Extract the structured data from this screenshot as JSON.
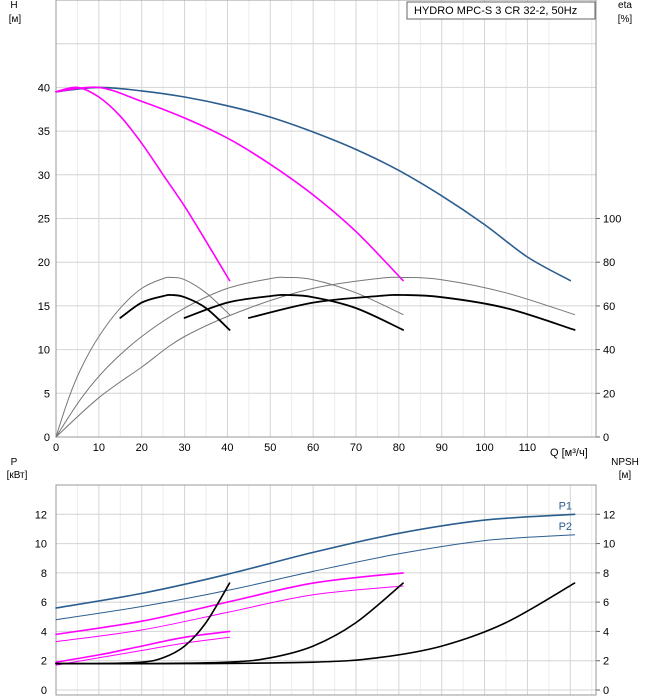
{
  "chart_data": [
    {
      "type": "line",
      "title": "HYDRO MPC-S 3 CR 32-2, 50Hz",
      "xlabel": "Q [м³/ч]",
      "ylabel": "H",
      "ylabel_unit": "[м]",
      "y2label": "eta",
      "y2label_unit": "[%]",
      "xlim": [
        0,
        126
      ],
      "ylim": [
        0,
        50
      ],
      "y2lim": [
        0,
        200
      ],
      "x_ticks": [
        0,
        10,
        20,
        30,
        40,
        50,
        60,
        70,
        80,
        90,
        100,
        110
      ],
      "y_ticks": [
        0,
        5,
        10,
        15,
        20,
        25,
        30,
        35,
        40
      ],
      "y2_ticks": [
        0,
        20,
        40,
        60,
        80,
        100
      ],
      "grid": true,
      "colors": {
        "head_all": "#2b5d8f",
        "head_partial": "#ff00ff",
        "eta": "#000000"
      },
      "series": [
        {
          "values_x": [
            0,
            10,
            20,
            30,
            40,
            50,
            60,
            70,
            80,
            90,
            100,
            110,
            120
          ],
          "values_y": [
            39.5,
            40.0,
            39.6,
            38.9,
            37.9,
            36.6,
            34.9,
            32.9,
            30.5,
            27.6,
            24.3,
            20.6,
            17.9
          ]
        },
        {
          "values_x": [
            0,
            10,
            20,
            30,
            40,
            50,
            60,
            70,
            81
          ],
          "values_y": [
            39.5,
            40.0,
            38.4,
            36.5,
            34.2,
            31.2,
            27.7,
            23.5,
            17.9
          ]
        },
        {
          "values_x": [
            0,
            5,
            10,
            15,
            20,
            25,
            30,
            35,
            40.5
          ],
          "values_y": [
            39.5,
            40.0,
            38.9,
            36.7,
            33.6,
            30.0,
            26.4,
            22.4,
            17.9
          ]
        },
        {
          "values_x": [
            0,
            3,
            6,
            10,
            15,
            20,
            25,
            27,
            30,
            35,
            40.5
          ],
          "values_y": [
            0,
            18,
            32,
            46,
            59,
            68,
            72.5,
            73,
            72,
            66,
            56
          ]
        },
        {
          "values_x": [
            0,
            6,
            12,
            20,
            30,
            40,
            50,
            54,
            60,
            70,
            81
          ],
          "values_y": [
            0,
            18,
            32,
            46,
            59,
            68,
            72.5,
            73,
            72,
            66,
            56
          ]
        },
        {
          "values_x": [
            0,
            10,
            20,
            30,
            45,
            60,
            75,
            81,
            90,
            105,
            121
          ],
          "values_y": [
            0,
            18,
            32,
            46,
            59,
            68,
            72.5,
            73,
            72,
            66,
            56
          ]
        },
        {
          "values_x": [
            15,
            20,
            25,
            27,
            30,
            35,
            40.5
          ],
          "values_y": [
            54.5,
            61.5,
            64.5,
            65,
            64,
            59,
            49
          ]
        },
        {
          "values_x": [
            30,
            40,
            50,
            54,
            60,
            70,
            81
          ],
          "values_y": [
            54.5,
            61.5,
            64.5,
            65,
            64,
            59,
            49
          ]
        },
        {
          "values_x": [
            45,
            60,
            75,
            81,
            90,
            105,
            121
          ],
          "values_y": [
            54.5,
            61.5,
            64.5,
            65,
            64,
            59,
            49
          ]
        }
      ]
    },
    {
      "type": "line",
      "ylabel": "P",
      "ylabel_unit": "[кВт]",
      "y2label": "NPSH",
      "y2label_unit": "[м]",
      "xlim": [
        0,
        126
      ],
      "ylim": [
        0,
        14
      ],
      "y2lim": [
        0,
        14
      ],
      "y_ticks": [
        0,
        2,
        4,
        6,
        8,
        10,
        12
      ],
      "y2_ticks": [
        0,
        2,
        4,
        6,
        8,
        10,
        12
      ],
      "grid": true,
      "colors": {
        "p_all": "#2b5d8f",
        "p_partial": "#ff00ff",
        "npsh": "#000000"
      },
      "series": [
        {
          "name": "P1",
          "values_x": [
            0,
            20,
            40,
            60,
            80,
            100,
            121
          ],
          "values_y": [
            5.6,
            6.6,
            7.9,
            9.4,
            10.7,
            11.6,
            12.0
          ]
        },
        {
          "name": "P2",
          "values_x": [
            0,
            20,
            40,
            60,
            80,
            100,
            121
          ],
          "values_y": [
            4.8,
            5.7,
            6.8,
            8.1,
            9.3,
            10.2,
            10.6
          ]
        },
        {
          "values_x": [
            0,
            20,
            40,
            60,
            81
          ],
          "values_y": [
            3.8,
            4.7,
            6.0,
            7.3,
            8.0
          ]
        },
        {
          "values_x": [
            0,
            20,
            40,
            60,
            81
          ],
          "values_y": [
            3.3,
            4.1,
            5.3,
            6.5,
            7.1
          ]
        },
        {
          "values_x": [
            0,
            10,
            20,
            30,
            40.5
          ],
          "values_y": [
            1.9,
            2.4,
            3.0,
            3.6,
            4.0
          ]
        },
        {
          "values_x": [
            0,
            10,
            20,
            30,
            40.5
          ],
          "values_y": [
            1.7,
            2.2,
            2.7,
            3.2,
            3.6
          ]
        },
        {
          "values_x": [
            0,
            10,
            20,
            25,
            30,
            35,
            40.5
          ],
          "values_y": [
            1.8,
            1.8,
            1.9,
            2.2,
            3.0,
            4.6,
            7.3
          ]
        },
        {
          "values_x": [
            0,
            20,
            40,
            50,
            60,
            70,
            81
          ],
          "values_y": [
            1.8,
            1.8,
            1.9,
            2.2,
            3.0,
            4.6,
            7.3
          ]
        },
        {
          "values_x": [
            0,
            30,
            60,
            75,
            90,
            105,
            121
          ],
          "values_y": [
            1.8,
            1.8,
            1.9,
            2.2,
            3.0,
            4.6,
            7.3
          ]
        }
      ]
    }
  ]
}
